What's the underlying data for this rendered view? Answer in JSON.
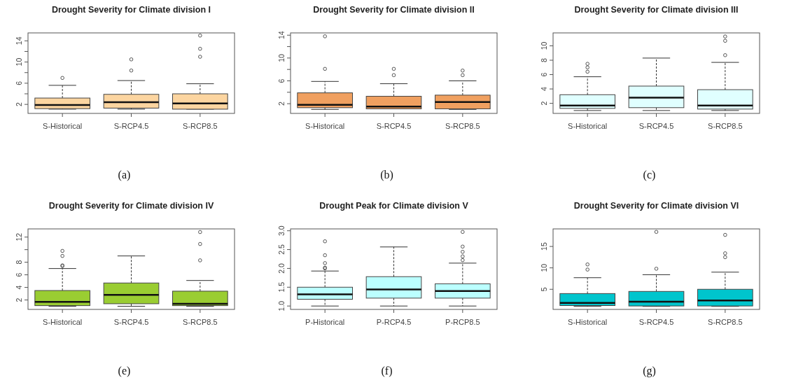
{
  "chart_data": [
    {
      "type": "box",
      "title": "Drought Severity for Climate division I",
      "categories": [
        "S-Historical",
        "S-RCP4.5",
        "S-RCP8.5"
      ],
      "ylim": [
        0.3,
        15.5
      ],
      "yticks": [
        2,
        {
          "value": 4,
          "label": null
        },
        6,
        {
          "value": 8,
          "label": null
        },
        10,
        {
          "value": 12,
          "label": null
        },
        14
      ],
      "annotations": [
        "(a)"
      ],
      "series": [
        {
          "color": "#fcd5a0",
          "boxes": [
            {
              "low": 1.1,
              "q1": 1.2,
              "median": 1.9,
              "q3": 3.2,
              "high": 5.6,
              "outliers": [
                7.0
              ]
            },
            {
              "low": 1.1,
              "q1": 1.3,
              "median": 2.4,
              "q3": 3.9,
              "high": 6.5,
              "outliers": [
                8.4,
                10.5
              ]
            },
            {
              "low": 1.1,
              "q1": 1.1,
              "median": 2.2,
              "q3": 4.0,
              "high": 5.9,
              "outliers": [
                11.0,
                12.5,
                15.0
              ]
            }
          ]
        }
      ]
    },
    {
      "type": "box",
      "title": "Drought Severity for Climate division II",
      "categories": [
        "S-Historical",
        "S-RCP4.5",
        "S-RCP8.5"
      ],
      "ylim": [
        0.3,
        14.4
      ],
      "yticks": [
        2,
        {
          "value": 4,
          "label": null
        },
        6,
        {
          "value": 8,
          "label": null
        },
        10,
        {
          "value": 12,
          "label": null
        },
        14
      ],
      "annotations": [
        "(b)"
      ],
      "series": [
        {
          "color": "#f0a060",
          "boxes": [
            {
              "low": 1.0,
              "q1": 1.3,
              "median": 1.8,
              "q3": 3.9,
              "high": 5.9,
              "outliers": [
                8.1,
                13.8
              ]
            },
            {
              "low": 1.1,
              "q1": 1.1,
              "median": 1.5,
              "q3": 3.3,
              "high": 5.5,
              "outliers": [
                7.0,
                8.1
              ]
            },
            {
              "low": 1.0,
              "q1": 1.1,
              "median": 2.3,
              "q3": 3.5,
              "high": 6.0,
              "outliers": [
                7.0,
                7.8
              ]
            }
          ]
        }
      ]
    },
    {
      "type": "box",
      "title": "Drought Severity for Climate division III",
      "categories": [
        "S-Historical",
        "S-RCP4.5",
        "S-RCP8.5"
      ],
      "ylim": [
        0.6,
        11.8
      ],
      "yticks": [
        2,
        4,
        6,
        8,
        10
      ],
      "annotations": [
        "(c)"
      ],
      "series": [
        {
          "color": "#e0ffff",
          "boxes": [
            {
              "low": 1.0,
              "q1": 1.3,
              "median": 1.7,
              "q3": 3.2,
              "high": 5.7,
              "outliers": [
                6.4,
                7.0,
                7.5
              ]
            },
            {
              "low": 1.0,
              "q1": 1.4,
              "median": 2.8,
              "q3": 4.4,
              "high": 8.3
            },
            {
              "low": 1.0,
              "q1": 1.2,
              "median": 1.7,
              "q3": 3.9,
              "high": 7.7,
              "outliers": [
                8.7,
                10.7,
                11.3
              ]
            }
          ]
        }
      ]
    },
    {
      "type": "box",
      "title": "Drought Severity for Climate division IV",
      "categories": [
        "S-Historical",
        "S-RCP4.5",
        "S-RCP8.5"
      ],
      "ylim": [
        0.5,
        13.3
      ],
      "yticks": [
        2,
        4,
        6,
        8,
        {
          "value": 10,
          "label": null
        },
        12
      ],
      "annotations": [
        "(e)"
      ],
      "series": [
        {
          "color": "#9acd32",
          "boxes": [
            {
              "low": 1.0,
              "q1": 1.1,
              "median": 1.7,
              "q3": 3.5,
              "high": 7.0,
              "outliers": [
                7.4,
                7.5,
                9.0,
                9.8
              ]
            },
            {
              "low": 1.0,
              "q1": 1.4,
              "median": 2.8,
              "q3": 4.7,
              "high": 9.0
            },
            {
              "low": 1.0,
              "q1": 1.1,
              "median": 1.4,
              "q3": 3.4,
              "high": 5.1,
              "outliers": [
                8.3,
                10.9,
                12.8
              ]
            }
          ]
        }
      ]
    },
    {
      "type": "box",
      "title": "Drought Peak for Climate division V",
      "categories": [
        "P-Historical",
        "P-RCP4.5",
        "P-RCP8.5"
      ],
      "ylim": [
        0.91,
        3.05
      ],
      "yticks": [
        {
          "value": 1,
          "label": "1.0"
        },
        1.5,
        {
          "value": 2,
          "label": "2.0"
        },
        2.5,
        {
          "value": 3,
          "label": "3.0"
        }
      ],
      "annotations": [
        "(f)"
      ],
      "series": [
        {
          "color": "#bbffff",
          "boxes": [
            {
              "low": 1.0,
              "q1": 1.18,
              "median": 1.31,
              "q3": 1.5,
              "high": 1.93,
              "outliers": [
                2.0,
                2.02,
                2.14,
                2.35,
                2.72
              ]
            },
            {
              "low": 1.0,
              "q1": 1.21,
              "median": 1.44,
              "q3": 1.78,
              "high": 2.57
            },
            {
              "low": 1.0,
              "q1": 1.21,
              "median": 1.4,
              "q3": 1.59,
              "high": 2.14,
              "outliers": [
                2.22,
                2.32,
                2.44,
                2.58,
                2.97
              ]
            }
          ]
        }
      ]
    },
    {
      "type": "box",
      "title": "Drought Severity for Climate division VI",
      "categories": [
        "S-Historical",
        "S-RCP4.5",
        "S-RCP8.5"
      ],
      "ylim": [
        0.3,
        19.1
      ],
      "yticks": [
        5,
        10,
        15
      ],
      "annotations": [
        "(g)"
      ],
      "series": [
        {
          "color": "#00c5cd",
          "boxes": [
            {
              "low": 1.0,
              "q1": 1.2,
              "median": 1.8,
              "q3": 4.0,
              "high": 7.7,
              "outliers": [
                9.6,
                10.8
              ]
            },
            {
              "low": 1.0,
              "q1": 1.1,
              "median": 2.1,
              "q3": 4.5,
              "high": 8.4,
              "outliers": [
                9.8,
                18.4
              ]
            },
            {
              "low": 1.0,
              "q1": 1.1,
              "median": 2.4,
              "q3": 5.0,
              "high": 9.0,
              "outliers": [
                12.5,
                13.4,
                17.7
              ]
            }
          ]
        }
      ]
    }
  ]
}
